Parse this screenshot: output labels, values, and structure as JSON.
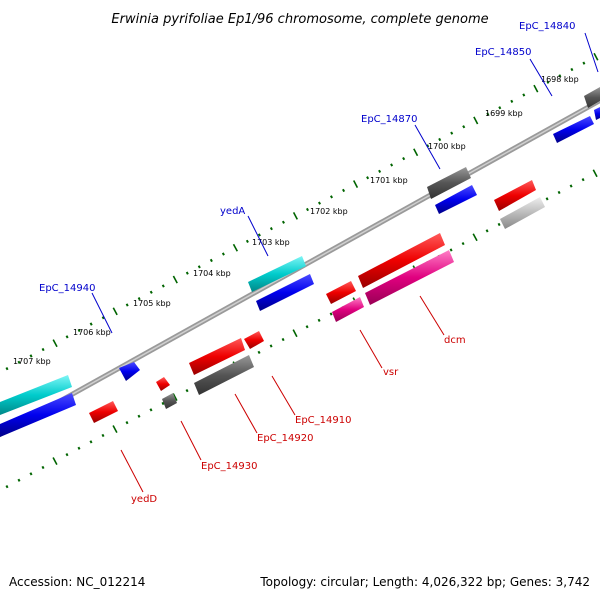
{
  "title": "Erwinia pyrifoliae Ep1/96 chromosome, complete genome",
  "footer": {
    "accession": "Accession: NC_012214",
    "summary": "Topology: circular; Length: 4,026,322 bp; Genes: 3,742"
  },
  "ruler_ticks": [
    "1698 kbp",
    "1699 kbp",
    "1700 kbp",
    "1701 kbp",
    "1702 kbp",
    "1703 kbp",
    "1704 kbp",
    "1705 kbp",
    "1706 kbp",
    "1707 kbp"
  ],
  "colors": {
    "blue": "#0000cc",
    "red": "#cc0000",
    "backbone": "#808080",
    "tick": "#006400",
    "cyan": "#00cccc",
    "gray": "#555555",
    "light_gray": "#bbbbbb",
    "pink": "#e0007f"
  },
  "gene_labels": {
    "forward": [
      "EpC_14840",
      "EpC_14850",
      "EpC_14870",
      "yedA",
      "EpC_14940"
    ],
    "reverse": [
      "dcm",
      "vsr",
      "EpC_14910",
      "EpC_14920",
      "EpC_14930",
      "yedD"
    ]
  }
}
